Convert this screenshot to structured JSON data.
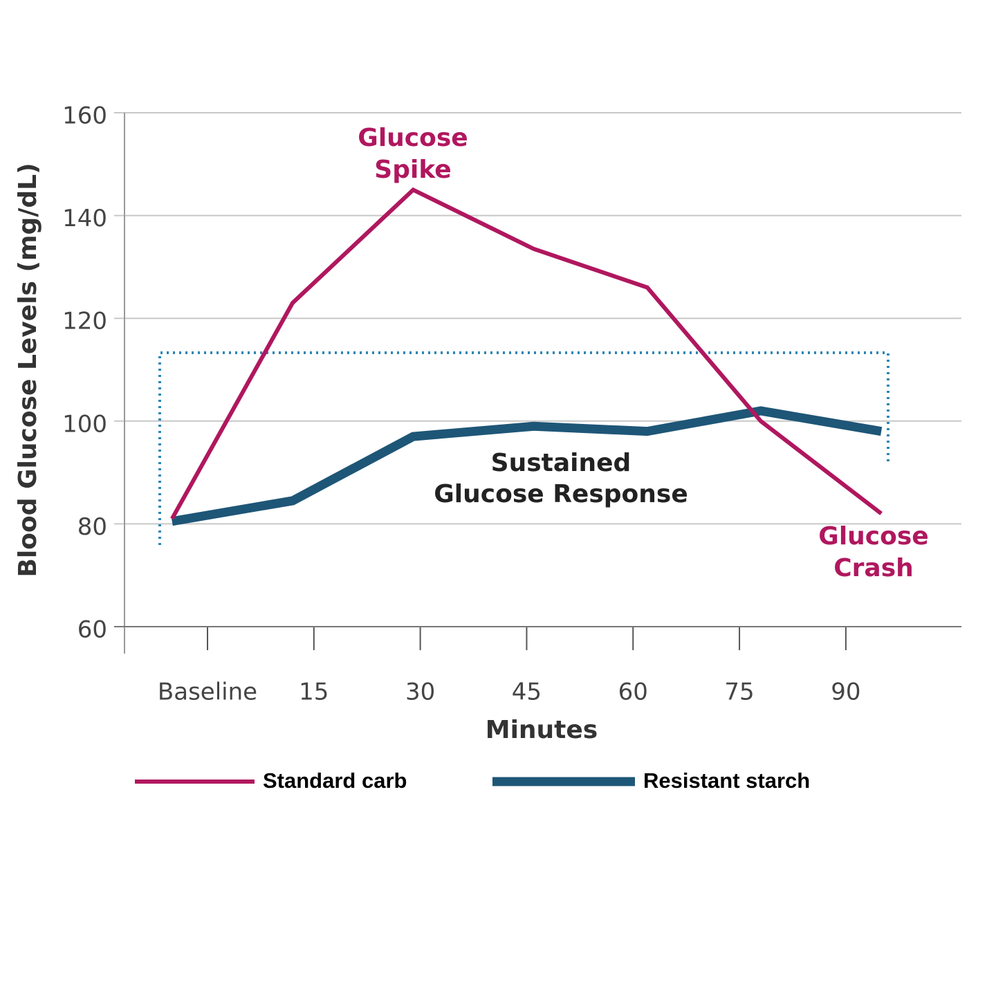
{
  "chart_data": {
    "type": "line",
    "y_label": "Blood Glucose Levels (mg/dL)",
    "x_label": "Minutes",
    "x": [
      -5,
      12,
      29,
      46,
      62,
      78,
      95
    ],
    "xlim": [
      -12,
      106
    ],
    "xticks": [
      {
        "value": 0,
        "label": "Baseline"
      },
      15,
      30,
      45,
      60,
      75,
      90
    ],
    "ylim": [
      60,
      160
    ],
    "yticks": [
      60,
      80,
      100,
      120,
      140,
      160
    ],
    "grid": true,
    "series": [
      {
        "name": "Standard carb",
        "color": "#b0175e",
        "values": [
          81,
          123,
          145,
          133.5,
          126,
          100,
          82
        ]
      },
      {
        "name": "Resistant starch",
        "color": "#1e5677",
        "values": [
          80.5,
          84.5,
          97,
          99,
          98,
          102,
          98
        ]
      }
    ],
    "annotations": [
      [
        "Glucose",
        "Spike"
      ],
      [
        "Sustained",
        "Glucose Response"
      ],
      [
        "Glucose",
        "Crash"
      ]
    ]
  }
}
